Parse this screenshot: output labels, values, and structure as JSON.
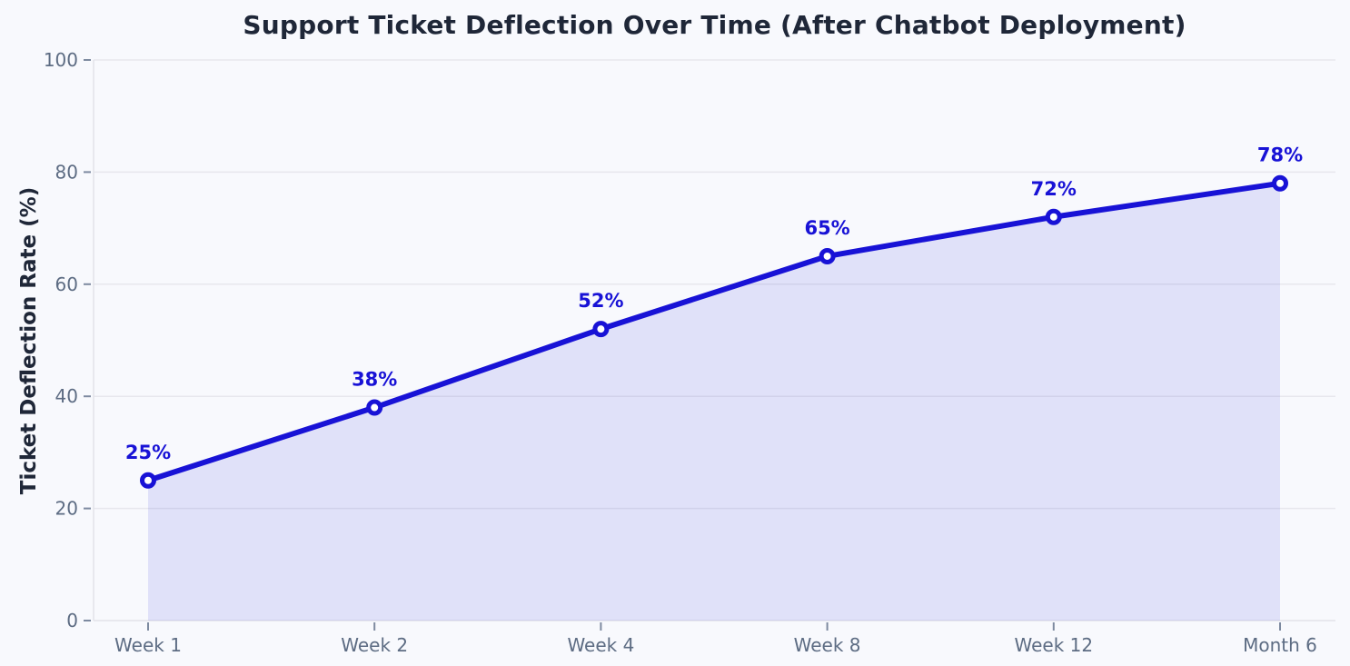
{
  "chart_data": {
    "type": "line",
    "title": "Support Ticket Deflection Over Time (After Chatbot Deployment)",
    "xlabel": "",
    "ylabel": "Ticket Deflection Rate (%)",
    "categories": [
      "Week 1",
      "Week 2",
      "Week 4",
      "Week 8",
      "Week 12",
      "Month 6"
    ],
    "values": [
      25,
      38,
      52,
      65,
      72,
      78
    ],
    "point_labels": [
      "25%",
      "38%",
      "52%",
      "65%",
      "72%",
      "78%"
    ],
    "series": [
      {
        "name": "Ticket Deflection Rate",
        "values": [
          25,
          38,
          52,
          65,
          72,
          78
        ]
      }
    ],
    "ylim": [
      0,
      100
    ],
    "yticks": [
      0,
      20,
      40,
      60,
      80,
      100
    ],
    "grid": true,
    "legend": false,
    "area_fill": true,
    "marker": "circle-open",
    "colors": {
      "line": "#1812d6",
      "marker_fill": "#ffffff",
      "area_fill": "rgba(24,18,214,0.10)",
      "title_text": "#1f2738",
      "tick_label_text": "#5d6c83",
      "grid_line": "#e7e7ed",
      "spine": "#e2e3e9",
      "tick_mark": "#7d8aa0",
      "background": "#f8f9fd"
    }
  }
}
